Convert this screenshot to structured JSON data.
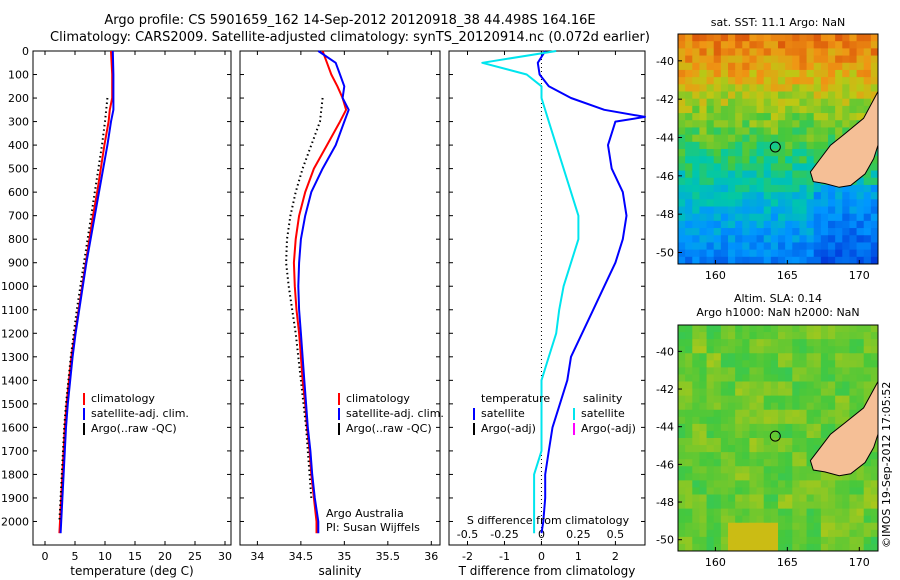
{
  "header": {
    "line1": "Argo profile: CS 5901659_162 14-Sep-2012 20120918_38 44.498S 164.16E",
    "line2": "Climatology: CARS2009. Satellite-adjusted climatology: synTS_20120914.nc (0.072d earlier)"
  },
  "credit": {
    "line1": "Argo Australia",
    "line2": "PI: Susan Wijffels"
  },
  "watermark": "©IMOS 19-Sep-2012 17:05:52",
  "colors": {
    "climatology": "#ff0000",
    "satellite": "#0000ff",
    "argo": "#000000",
    "salinity_satellite": "#00e5ee",
    "salinity_argo": "#ff00ff",
    "land": "#f5bf96"
  },
  "chart_data": [
    {
      "type": "line",
      "panel": "temperature",
      "xlabel": "temperature (deg C)",
      "ylabel": "",
      "xlim": [
        -2,
        31
      ],
      "ylim": [
        2100,
        0
      ],
      "xticks": [
        0,
        5,
        10,
        15,
        20,
        25,
        30
      ],
      "yticks": [
        0,
        100,
        200,
        300,
        400,
        500,
        600,
        700,
        800,
        900,
        1000,
        1100,
        1200,
        1300,
        1400,
        1500,
        1600,
        1700,
        1800,
        1900,
        2000
      ],
      "legend": [
        "climatology",
        "satellite-adj. clim.",
        "Argo(..raw -QC)"
      ],
      "legend_position": "center-right",
      "series": [
        {
          "name": "climatology",
          "depth": [
            0,
            100,
            200,
            250,
            300,
            400,
            500,
            600,
            700,
            800,
            900,
            1000,
            1100,
            1200,
            1300,
            1400,
            1500,
            1600,
            1700,
            1800,
            1900,
            2000,
            2050
          ],
          "x": [
            11.0,
            11.2,
            11.2,
            10.8,
            10.6,
            9.9,
            9.3,
            8.7,
            8.0,
            7.4,
            6.8,
            6.2,
            5.6,
            5.0,
            4.4,
            4.0,
            3.6,
            3.3,
            3.1,
            2.9,
            2.7,
            2.5,
            2.4
          ]
        },
        {
          "name": "satellite-adj. clim.",
          "depth": [
            0,
            100,
            200,
            250,
            300,
            400,
            500,
            600,
            700,
            800,
            900,
            1000,
            1100,
            1200,
            1300,
            1400,
            1500,
            1600,
            1700,
            1800,
            1900,
            2000,
            2050
          ],
          "x": [
            11.3,
            11.4,
            11.4,
            11.4,
            11.0,
            10.4,
            9.7,
            9.0,
            8.3,
            7.6,
            6.9,
            6.3,
            5.7,
            5.1,
            4.6,
            4.2,
            3.8,
            3.5,
            3.3,
            3.1,
            2.9,
            2.7,
            2.6
          ]
        },
        {
          "name": "Argo(..raw -QC)",
          "depth": [
            200,
            300,
            400,
            500,
            600,
            700,
            800,
            900,
            1000,
            1100,
            1200,
            1300,
            1400,
            1500,
            1600,
            1700,
            1800,
            1900,
            2000
          ],
          "x": [
            10.4,
            10.0,
            9.5,
            8.9,
            8.3,
            7.7,
            7.1,
            6.5,
            5.9,
            5.3,
            4.8,
            4.3,
            3.9,
            3.5,
            3.2,
            3.0,
            2.8,
            2.6,
            2.4
          ]
        }
      ]
    },
    {
      "type": "line",
      "panel": "salinity",
      "xlabel": "salinity",
      "ylabel": "",
      "xlim": [
        33.8,
        36.1
      ],
      "ylim": [
        2100,
        0
      ],
      "xticks": [
        34,
        34.5,
        35,
        35.5,
        36
      ],
      "legend": [
        "climatology",
        "satellite-adj. clim.",
        "Argo(..raw -QC)"
      ],
      "legend_position": "center-right",
      "series": [
        {
          "name": "climatology",
          "depth": [
            0,
            50,
            100,
            150,
            200,
            250,
            300,
            400,
            500,
            600,
            700,
            800,
            900,
            1000,
            1100,
            1200,
            1300,
            1400,
            1500,
            1600,
            1700,
            1800,
            1900,
            2000,
            2050
          ],
          "x": [
            34.75,
            34.8,
            34.85,
            34.92,
            34.98,
            35.02,
            34.95,
            34.8,
            34.65,
            34.55,
            34.48,
            34.44,
            34.42,
            34.43,
            34.45,
            34.48,
            34.5,
            34.52,
            34.55,
            34.57,
            34.6,
            34.62,
            34.65,
            34.68,
            34.68
          ]
        },
        {
          "name": "satellite-adj. clim.",
          "depth": [
            0,
            50,
            100,
            150,
            200,
            250,
            300,
            400,
            500,
            600,
            700,
            800,
            900,
            1000,
            1100,
            1200,
            1300,
            1400,
            1500,
            1600,
            1700,
            1800,
            1900,
            2000,
            2050
          ],
          "x": [
            34.7,
            34.9,
            34.95,
            35.0,
            34.98,
            35.05,
            35.0,
            34.9,
            34.75,
            34.62,
            34.55,
            34.5,
            34.48,
            34.47,
            34.48,
            34.5,
            34.52,
            34.54,
            34.56,
            34.58,
            34.61,
            34.63,
            34.66,
            34.7,
            34.7
          ]
        },
        {
          "name": "Argo(..raw -QC)",
          "depth": [
            200,
            300,
            400,
            500,
            600,
            700,
            800,
            900,
            1000,
            1100,
            1200,
            1300,
            1400,
            1500,
            1600,
            1700,
            1800,
            1900
          ],
          "x": [
            34.75,
            34.72,
            34.62,
            34.52,
            34.44,
            34.38,
            34.34,
            34.33,
            34.36,
            34.4,
            34.44,
            34.47,
            34.5,
            34.53,
            34.56,
            34.58,
            34.6,
            34.62
          ]
        }
      ]
    },
    {
      "type": "line",
      "panel": "difference",
      "xlabel": "T difference from climatology",
      "top_xlabel": "S difference from climatology",
      "ylabel": "",
      "xlim": [
        -2.5,
        2.8
      ],
      "ylim": [
        2100,
        0
      ],
      "xticks": [
        -2,
        -1,
        0,
        1,
        2
      ],
      "top_xticks": [
        "-0.5",
        "-0.25",
        "0",
        "0.25",
        "0.5"
      ],
      "legend_titles": [
        "temperature",
        "salinity"
      ],
      "legend": [
        "satellite",
        "Argo(-adj)",
        "satellite",
        "Argo(-adj)"
      ],
      "series": [
        {
          "name": "temperature satellite",
          "depth": [
            0,
            50,
            100,
            150,
            200,
            250,
            280,
            300,
            400,
            500,
            600,
            700,
            800,
            900,
            1000,
            1100,
            1200,
            1300,
            1400,
            1500,
            1600,
            1700,
            1800,
            1900,
            2000,
            2050
          ],
          "x": [
            0.1,
            -0.1,
            -0.05,
            0.2,
            0.8,
            1.7,
            2.8,
            2.0,
            1.8,
            1.9,
            2.2,
            2.3,
            2.2,
            2.0,
            1.7,
            1.4,
            1.1,
            0.8,
            0.7,
            0.5,
            0.3,
            0.2,
            0.1,
            0.1,
            0.05,
            0.0
          ]
        },
        {
          "name": "salinity satellite",
          "depth": [
            0,
            50,
            100,
            150,
            200,
            300,
            400,
            500,
            600,
            700,
            800,
            900,
            1000,
            1100,
            1200,
            1300,
            1400,
            1500,
            1600,
            1700,
            1800,
            1900,
            2000,
            2050
          ],
          "x": [
            0.1,
            -0.4,
            -0.1,
            0.0,
            0.0,
            0.05,
            0.1,
            0.15,
            0.2,
            0.25,
            0.25,
            0.2,
            0.15,
            0.12,
            0.1,
            0.05,
            0.0,
            0.0,
            0.0,
            0.0,
            -0.05,
            -0.05,
            -0.05,
            -0.05
          ]
        }
      ]
    },
    {
      "type": "heatmap",
      "panel": "map-sst",
      "title": "sat. SST: 11.1  Argo: NaN",
      "xticks": [
        160,
        165,
        170
      ],
      "yticks": [
        -40,
        -42,
        -44,
        -46,
        -48,
        -50
      ],
      "xlim": [
        157.4,
        171.3
      ],
      "ylim": [
        -50.6,
        -38.6
      ],
      "argo_position": [
        164.16,
        -44.498
      ]
    },
    {
      "type": "heatmap",
      "panel": "map-sla",
      "title_line1": "Altim. SLA: 0.14",
      "title_line2": "Argo h1000: NaN h2000: NaN",
      "xticks": [
        160,
        165,
        170
      ],
      "yticks": [
        -40,
        -42,
        -44,
        -46,
        -48,
        -50
      ],
      "xlim": [
        157.4,
        171.3
      ],
      "ylim": [
        -50.6,
        -38.6
      ],
      "argo_position": [
        164.16,
        -44.498
      ]
    }
  ]
}
